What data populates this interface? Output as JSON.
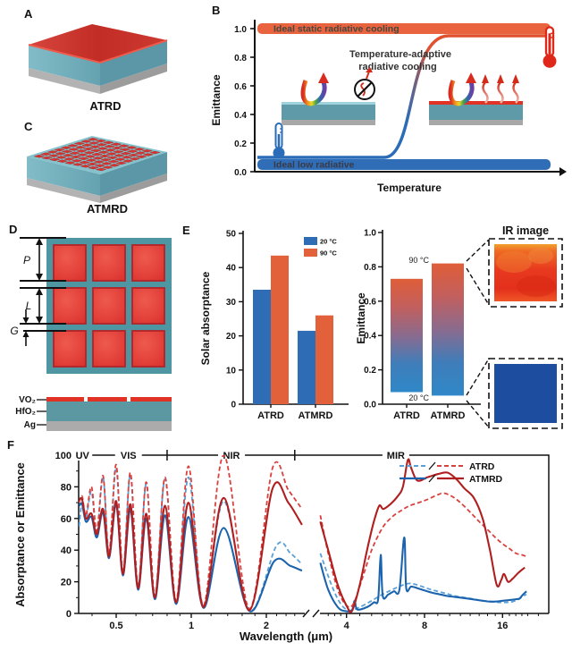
{
  "figure": {
    "panels": {
      "a": {
        "label": "A",
        "caption": "ATRD"
      },
      "b": {
        "label": "B",
        "ylabel": "Emittance",
        "xlabel": "Temperature",
        "yticks": [
          "0.0",
          "0.2",
          "0.4",
          "0.6",
          "0.8",
          "1.0"
        ],
        "top_band": "Ideal static radiative cooling",
        "bottom_band": "Ideal low radiative",
        "curve_title_line1": "Temperature-adaptive",
        "curve_title_line2": "radiative cooling",
        "colors": {
          "top_band": "#e8633e",
          "bottom_band": "#2f6db6",
          "curve_cold": "#2a6cb7",
          "curve_hot": "#e2512d"
        }
      },
      "c": {
        "label": "C",
        "caption": "ATMRD"
      },
      "d": {
        "label": "D",
        "dim_period": "P",
        "dim_length": "L",
        "dim_gap": "G",
        "layers": [
          "VO₂",
          "HfO₂",
          "Ag"
        ]
      },
      "e": {
        "label": "E"
      },
      "f": {
        "label": "F"
      }
    }
  },
  "chart_data": [
    {
      "type": "bar",
      "panel": "E-left",
      "categories": [
        "ATRD",
        "ATMRD"
      ],
      "series": [
        {
          "name": "20 °C",
          "color": "#2e6db5",
          "values": [
            33.5,
            21.5
          ]
        },
        {
          "name": "90 °C",
          "color": "#e2613b",
          "values": [
            43.5,
            26.0
          ]
        }
      ],
      "ylabel": "Solar absorptance",
      "ylim": [
        0,
        50
      ],
      "yticks": [
        0,
        10,
        20,
        30,
        40,
        50
      ],
      "legend_position": "top-right"
    },
    {
      "type": "bar",
      "panel": "E-right",
      "subtype": "gradient-range",
      "categories": [
        "ATRD",
        "ATMRD"
      ],
      "bars": [
        {
          "bottom": 0.07,
          "top": 0.73
        },
        {
          "bottom": 0.05,
          "top": 0.82
        }
      ],
      "ylabel": "Emittance",
      "ylim": [
        0,
        1
      ],
      "yticks": [
        "0.0",
        "0.2",
        "0.4",
        "0.6",
        "0.8",
        "1.0"
      ],
      "annotations": [
        {
          "text": "90 °C"
        },
        {
          "text": "20 °C"
        }
      ],
      "gradient": [
        "#df5e38",
        "#8a6b8e",
        "#2f88c8"
      ],
      "ir": {
        "title": "IR image",
        "hot_color": "#e83b1f",
        "cold_color": "#1d4d9f"
      }
    },
    {
      "type": "line",
      "panel": "F",
      "xlabel": "Wavelength (μm)",
      "ylabel": "Absorptance or Emittance",
      "xscale": "log",
      "ylim": [
        0,
        100
      ],
      "yticks": [
        0,
        20,
        40,
        60,
        80,
        100
      ],
      "yticks_minor": [
        10,
        30,
        50,
        70,
        90
      ],
      "xticks": [
        0.5,
        1,
        2,
        4,
        8,
        16
      ],
      "xticks_minor": [
        0.4,
        0.6,
        0.7,
        0.8,
        0.9,
        1.2,
        1.4,
        1.6,
        1.8,
        2.0,
        2.2,
        2.4,
        2.6,
        3.4,
        3.6,
        3.8,
        4.5,
        5,
        5.5,
        6,
        6.5,
        7,
        7.5,
        9,
        10,
        11,
        12,
        13,
        14,
        15,
        17,
        18,
        19,
        20,
        22
      ],
      "axis_break": {
        "left": 2.78,
        "right": 3.17
      },
      "regions": [
        {
          "label": "UV",
          "divider_at": 0.39,
          "label_at": 0.366
        },
        {
          "label": "VIS",
          "divider_at": 0.8,
          "label_at": 0.56
        },
        {
          "label": "NIR",
          "divider_at": 2.6,
          "label_at": 1.45
        },
        {
          "label": "MIR",
          "label_at": 6.2
        }
      ],
      "legend": [
        {
          "label": "ATRD",
          "style": "dashed"
        },
        {
          "label": "ATMRD",
          "style": "solid"
        }
      ],
      "series": [
        {
          "name": "ATRD (blue)",
          "color": "#5aa0d8",
          "dashed": true,
          "points": [
            [
              0.355,
              55
            ],
            [
              0.365,
              70
            ],
            [
              0.378,
              60
            ],
            [
              0.398,
              77
            ],
            [
              0.418,
              50
            ],
            [
              0.443,
              86
            ],
            [
              0.468,
              37
            ],
            [
              0.5,
              92
            ],
            [
              0.532,
              25
            ],
            [
              0.57,
              88
            ],
            [
              0.612,
              16
            ],
            [
              0.66,
              82
            ],
            [
              0.715,
              10
            ],
            [
              0.785,
              85
            ],
            [
              0.87,
              7
            ],
            [
              0.975,
              86
            ],
            [
              1.12,
              4
            ],
            [
              1.35,
              71
            ],
            [
              1.71,
              2
            ],
            [
              2.2,
              43
            ],
            [
              2.5,
              38
            ],
            [
              2.78,
              31
            ],
            [
              3.17,
              38
            ],
            [
              3.5,
              18
            ],
            [
              3.8,
              6
            ],
            [
              4.1,
              2
            ],
            [
              4.5,
              4
            ],
            [
              5.0,
              8
            ],
            [
              5.5,
              12
            ],
            [
              6.0,
              15
            ],
            [
              6.5,
              17.5
            ],
            [
              7.0,
              19
            ],
            [
              7.5,
              18
            ],
            [
              8.5,
              15
            ],
            [
              9.5,
              13
            ],
            [
              10.5,
              11
            ],
            [
              11.5,
              10
            ],
            [
              12.5,
              9
            ],
            [
              13.5,
              8
            ],
            [
              14.5,
              7.5
            ],
            [
              15.5,
              7
            ],
            [
              16.5,
              7
            ],
            [
              17.5,
              7.5
            ],
            [
              18.5,
              9
            ],
            [
              19.2,
              11
            ],
            [
              19.8,
              12
            ]
          ]
        },
        {
          "name": "ATMRD (blue)",
          "color": "#1b64ad",
          "dashed": false,
          "points": [
            [
              0.355,
              68
            ],
            [
              0.365,
              69
            ],
            [
              0.378,
              58
            ],
            [
              0.398,
              61
            ],
            [
              0.418,
              48
            ],
            [
              0.443,
              64
            ],
            [
              0.468,
              35
            ],
            [
              0.5,
              69
            ],
            [
              0.532,
              24
            ],
            [
              0.57,
              66
            ],
            [
              0.612,
              15
            ],
            [
              0.66,
              60
            ],
            [
              0.715,
              9
            ],
            [
              0.785,
              62
            ],
            [
              0.87,
              6
            ],
            [
              0.975,
              61
            ],
            [
              1.12,
              3.5
            ],
            [
              1.35,
              54
            ],
            [
              1.71,
              1.5
            ],
            [
              2.15,
              33
            ],
            [
              2.5,
              30
            ],
            [
              2.78,
              27
            ],
            [
              3.17,
              32
            ],
            [
              3.4,
              15
            ],
            [
              3.7,
              4
            ],
            [
              3.95,
              1.5
            ],
            [
              4.2,
              2
            ],
            [
              4.3,
              8
            ],
            [
              4.4,
              2.5
            ],
            [
              4.8,
              4
            ],
            [
              5.1,
              7
            ],
            [
              5.3,
              9
            ],
            [
              5.42,
              37
            ],
            [
              5.52,
              11
            ],
            [
              5.8,
              12
            ],
            [
              6.1,
              14
            ],
            [
              6.4,
              15
            ],
            [
              6.68,
              48
            ],
            [
              6.8,
              16
            ],
            [
              7.1,
              17
            ],
            [
              7.5,
              16
            ],
            [
              8.0,
              14.5
            ],
            [
              8.6,
              13
            ],
            [
              9.2,
              12
            ],
            [
              9.8,
              11
            ],
            [
              10.4,
              10.5
            ],
            [
              11.0,
              10
            ],
            [
              11.6,
              9.5
            ],
            [
              12.2,
              9
            ],
            [
              12.8,
              8.5
            ],
            [
              13.4,
              8
            ],
            [
              14.2,
              7.5
            ],
            [
              15.0,
              7.5
            ],
            [
              16.0,
              8
            ],
            [
              17.0,
              8.5
            ],
            [
              18.0,
              9
            ],
            [
              18.6,
              9.5
            ],
            [
              19.2,
              12
            ],
            [
              19.8,
              14
            ]
          ]
        },
        {
          "name": "ATRD (red)",
          "color": "#d9413d",
          "dashed": true,
          "points": [
            [
              0.355,
              70
            ],
            [
              0.365,
              74
            ],
            [
              0.378,
              62
            ],
            [
              0.398,
              80
            ],
            [
              0.418,
              52
            ],
            [
              0.443,
              87
            ],
            [
              0.468,
              38
            ],
            [
              0.5,
              94
            ],
            [
              0.532,
              26
            ],
            [
              0.57,
              89
            ],
            [
              0.612,
              17
            ],
            [
              0.66,
              83
            ],
            [
              0.715,
              11
            ],
            [
              0.785,
              86
            ],
            [
              0.87,
              8
            ],
            [
              0.975,
              93
            ],
            [
              1.12,
              5
            ],
            [
              1.35,
              100
            ],
            [
              1.71,
              3
            ],
            [
              2.12,
              92
            ],
            [
              2.45,
              78
            ],
            [
              2.78,
              66
            ],
            [
              3.17,
              62
            ],
            [
              3.4,
              38
            ],
            [
              3.7,
              15
            ],
            [
              4.0,
              5
            ],
            [
              4.25,
              6
            ],
            [
              4.6,
              22
            ],
            [
              5.0,
              40
            ],
            [
              5.5,
              54
            ],
            [
              6.0,
              61
            ],
            [
              6.5,
              65
            ],
            [
              7.0,
              68
            ],
            [
              7.6,
              70
            ],
            [
              8.2,
              72
            ],
            [
              9.0,
              75
            ],
            [
              9.5,
              76
            ],
            [
              10.2,
              74
            ],
            [
              11.0,
              70
            ],
            [
              12.0,
              64
            ],
            [
              13.0,
              58
            ],
            [
              14.0,
              53
            ],
            [
              15.0,
              48
            ],
            [
              16.0,
              44
            ],
            [
              17.0,
              41
            ],
            [
              18.0,
              38
            ],
            [
              19.0,
              37
            ],
            [
              19.8,
              36
            ]
          ]
        },
        {
          "name": "ATMRD (red)",
          "color": "#b01f1f",
          "dashed": false,
          "points": [
            [
              0.355,
              72
            ],
            [
              0.365,
              72
            ],
            [
              0.378,
              60
            ],
            [
              0.398,
              63
            ],
            [
              0.418,
              50
            ],
            [
              0.443,
              66
            ],
            [
              0.468,
              36
            ],
            [
              0.5,
              71
            ],
            [
              0.532,
              25
            ],
            [
              0.57,
              69
            ],
            [
              0.612,
              16
            ],
            [
              0.66,
              63
            ],
            [
              0.715,
              10
            ],
            [
              0.785,
              68
            ],
            [
              0.87,
              7
            ],
            [
              0.975,
              70
            ],
            [
              1.12,
              4
            ],
            [
              1.35,
              73
            ],
            [
              1.71,
              2
            ],
            [
              2.12,
              79
            ],
            [
              2.45,
              70
            ],
            [
              2.78,
              56
            ],
            [
              3.17,
              58
            ],
            [
              3.4,
              40
            ],
            [
              3.7,
              18
            ],
            [
              4.0,
              5
            ],
            [
              4.2,
              1.5
            ],
            [
              4.5,
              18
            ],
            [
              4.8,
              40
            ],
            [
              5.1,
              58
            ],
            [
              5.35,
              68
            ],
            [
              5.55,
              66
            ],
            [
              5.9,
              69
            ],
            [
              6.3,
              74
            ],
            [
              6.6,
              80
            ],
            [
              6.9,
              97
            ],
            [
              7.1,
              92
            ],
            [
              7.5,
              84
            ],
            [
              8.2,
              86
            ],
            [
              9.0,
              88
            ],
            [
              9.8,
              89
            ],
            [
              10.6,
              85
            ],
            [
              11.4,
              79
            ],
            [
              12.4,
              73
            ],
            [
              13.4,
              60
            ],
            [
              14.3,
              40
            ],
            [
              15.2,
              18
            ],
            [
              15.8,
              21
            ],
            [
              16.2,
              25
            ],
            [
              16.8,
              20
            ],
            [
              17.5,
              22
            ],
            [
              18.5,
              26
            ],
            [
              19.5,
              29
            ]
          ]
        }
      ]
    }
  ]
}
